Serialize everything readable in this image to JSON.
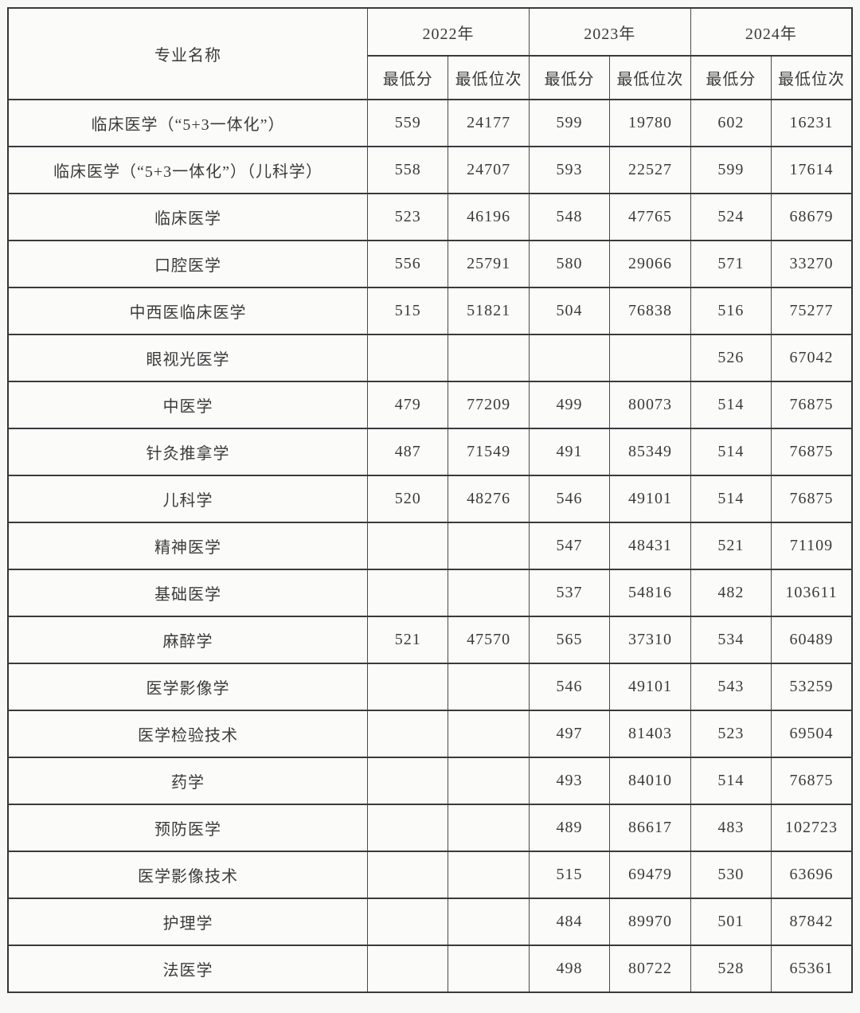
{
  "table": {
    "header": {
      "major_col": "专业名称",
      "year_groups": [
        {
          "year": "2022年",
          "sub": [
            "最低分",
            "最低位次"
          ]
        },
        {
          "year": "2023年",
          "sub": [
            "最低分",
            "最低位次"
          ]
        },
        {
          "year": "2024年",
          "sub": [
            "最低分",
            "最低位次"
          ]
        }
      ]
    },
    "rows": [
      {
        "major": "临床医学（“5+3一体化”）",
        "values": [
          "559",
          "24177",
          "599",
          "19780",
          "602",
          "16231"
        ]
      },
      {
        "major": "临床医学（“5+3一体化”）（儿科学）",
        "values": [
          "558",
          "24707",
          "593",
          "22527",
          "599",
          "17614"
        ]
      },
      {
        "major": "临床医学",
        "values": [
          "523",
          "46196",
          "548",
          "47765",
          "524",
          "68679"
        ]
      },
      {
        "major": "口腔医学",
        "values": [
          "556",
          "25791",
          "580",
          "29066",
          "571",
          "33270"
        ]
      },
      {
        "major": "中西医临床医学",
        "values": [
          "515",
          "51821",
          "504",
          "76838",
          "516",
          "75277"
        ]
      },
      {
        "major": "眼视光医学",
        "values": [
          "",
          "",
          "",
          "",
          "526",
          "67042"
        ]
      },
      {
        "major": "中医学",
        "values": [
          "479",
          "77209",
          "499",
          "80073",
          "514",
          "76875"
        ]
      },
      {
        "major": "针灸推拿学",
        "values": [
          "487",
          "71549",
          "491",
          "85349",
          "514",
          "76875"
        ]
      },
      {
        "major": "儿科学",
        "values": [
          "520",
          "48276",
          "546",
          "49101",
          "514",
          "76875"
        ]
      },
      {
        "major": "精神医学",
        "values": [
          "",
          "",
          "547",
          "48431",
          "521",
          "71109"
        ]
      },
      {
        "major": "基础医学",
        "values": [
          "",
          "",
          "537",
          "54816",
          "482",
          "103611"
        ]
      },
      {
        "major": "麻醉学",
        "values": [
          "521",
          "47570",
          "565",
          "37310",
          "534",
          "60489"
        ]
      },
      {
        "major": "医学影像学",
        "values": [
          "",
          "",
          "546",
          "49101",
          "543",
          "53259"
        ]
      },
      {
        "major": "医学检验技术",
        "values": [
          "",
          "",
          "497",
          "81403",
          "523",
          "69504"
        ]
      },
      {
        "major": "药学",
        "values": [
          "",
          "",
          "493",
          "84010",
          "514",
          "76875"
        ]
      },
      {
        "major": "预防医学",
        "values": [
          "",
          "",
          "489",
          "86617",
          "483",
          "102723"
        ]
      },
      {
        "major": "医学影像技术",
        "values": [
          "",
          "",
          "515",
          "69479",
          "530",
          "63696"
        ]
      },
      {
        "major": "护理学",
        "values": [
          "",
          "",
          "484",
          "89970",
          "501",
          "87842"
        ]
      },
      {
        "major": "法医学",
        "values": [
          "",
          "",
          "498",
          "80722",
          "528",
          "65361"
        ]
      }
    ]
  },
  "colors": {
    "border": "#3b3b3b",
    "text": "#3b3b3b",
    "background": "#f8f8f7"
  }
}
